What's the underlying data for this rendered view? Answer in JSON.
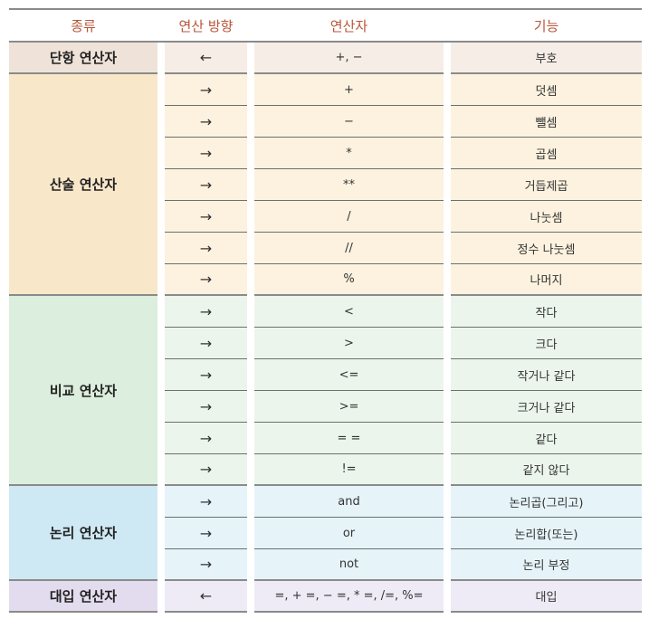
{
  "headers": {
    "kind": "종류",
    "direction": "연산 방향",
    "operator": "연산자",
    "function": "기능"
  },
  "groups": [
    {
      "name": "단항 연산자",
      "bg": "#efe2d8",
      "cellbg": "#f6ede6",
      "rows": [
        {
          "dir": "←",
          "op": "+, −",
          "fn": "부호"
        }
      ]
    },
    {
      "name": "산술 연산자",
      "bg": "#f8e7c9",
      "cellbg": "#fcf2df",
      "rows": [
        {
          "dir": "→",
          "op": "+",
          "fn": "덧셈"
        },
        {
          "dir": "→",
          "op": "−",
          "fn": "뺄셈"
        },
        {
          "dir": "→",
          "op": "*",
          "fn": "곱셈"
        },
        {
          "dir": "→",
          "op": "**",
          "fn": "거듭제곱"
        },
        {
          "dir": "→",
          "op": "/",
          "fn": "나눗셈"
        },
        {
          "dir": "→",
          "op": "//",
          "fn": "정수 나눗셈"
        },
        {
          "dir": "→",
          "op": "%",
          "fn": "나머지"
        }
      ]
    },
    {
      "name": "비교 연산자",
      "bg": "#dceedd",
      "cellbg": "#ecf5ec",
      "rows": [
        {
          "dir": "→",
          "op": "<",
          "fn": "작다"
        },
        {
          "dir": "→",
          "op": ">",
          "fn": "크다"
        },
        {
          "dir": "→",
          "op": "<=",
          "fn": "작거나 같다"
        },
        {
          "dir": "→",
          "op": ">=",
          "fn": "크거나 같다"
        },
        {
          "dir": "→",
          "op": "= =",
          "fn": "같다"
        },
        {
          "dir": "→",
          "op": "!=",
          "fn": "같지 않다"
        }
      ]
    },
    {
      "name": "논리 연산자",
      "bg": "#cfe9f4",
      "cellbg": "#e6f4fa",
      "rows": [
        {
          "dir": "→",
          "op": "and",
          "fn": "논리곱(그리고)"
        },
        {
          "dir": "→",
          "op": "or",
          "fn": "논리합(또는)"
        },
        {
          "dir": "→",
          "op": "not",
          "fn": "논리 부정"
        }
      ]
    },
    {
      "name": "대입 연산자",
      "bg": "#e3dcee",
      "cellbg": "#efebf6",
      "rows": [
        {
          "dir": "←",
          "op": "=, + =, − =, * =, /=, %=",
          "fn": "대입"
        }
      ]
    }
  ]
}
